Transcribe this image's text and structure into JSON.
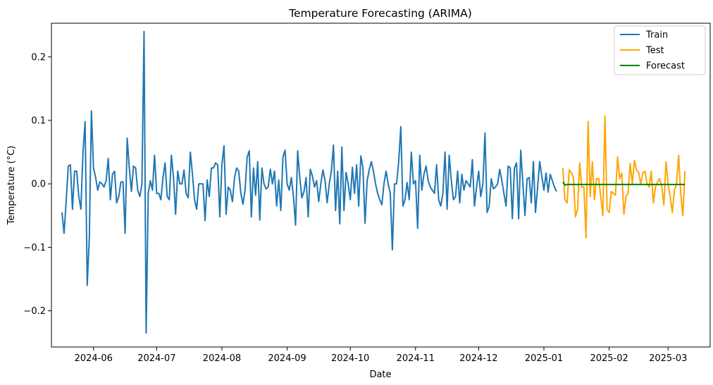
{
  "chart_data": {
    "type": "line",
    "title": "Temperature Forecasting (ARIMA)",
    "xlabel": "Date",
    "ylabel": "Temperature (°C)",
    "xlim": [
      "2024-05-12",
      "2025-03-21"
    ],
    "ylim": [
      -0.257,
      0.253
    ],
    "x_ticks": [
      "2024-06",
      "2024-07",
      "2024-08",
      "2024-09",
      "2024-10",
      "2024-11",
      "2024-12",
      "2025-01",
      "2025-02",
      "2025-03"
    ],
    "x_tick_dates": [
      "2024-06-01",
      "2024-07-01",
      "2024-08-01",
      "2024-09-01",
      "2024-10-01",
      "2024-11-01",
      "2024-12-01",
      "2025-01-01",
      "2025-02-01",
      "2025-03-01"
    ],
    "y_ticks": [
      -0.2,
      -0.1,
      0.0,
      0.1,
      0.2
    ],
    "y_tick_labels": [
      "−0.2",
      "−0.1",
      "0.0",
      "0.1",
      "0.2"
    ],
    "grid": false,
    "legend_position": "top-right",
    "series": [
      {
        "name": "Train",
        "color": "#1f77b4",
        "start_date": "2024-05-17",
        "step_days": 1,
        "values": [
          -0.045,
          -0.078,
          -0.028,
          0.028,
          0.03,
          -0.04,
          0.02,
          0.02,
          -0.02,
          -0.04,
          0.05,
          0.098,
          -0.16,
          -0.085,
          0.115,
          0.025,
          0.01,
          -0.01,
          0.003,
          0.0,
          -0.005,
          0.005,
          0.04,
          -0.025,
          0.015,
          0.02,
          -0.03,
          -0.02,
          0.003,
          0.003,
          -0.078,
          0.072,
          0.025,
          -0.012,
          0.028,
          0.025,
          -0.01,
          -0.02,
          0.0,
          0.24,
          -0.235,
          -0.015,
          0.005,
          -0.01,
          0.045,
          -0.015,
          -0.015,
          -0.025,
          0.01,
          0.033,
          -0.02,
          -0.025,
          0.045,
          0.01,
          -0.048,
          0.02,
          0.0,
          0.0,
          0.022,
          -0.015,
          -0.022,
          0.05,
          0.015,
          -0.025,
          -0.04,
          0.0,
          0.0,
          0.0,
          -0.058,
          0.006,
          -0.02,
          0.025,
          0.025,
          0.033,
          0.03,
          -0.052,
          0.03,
          0.06,
          -0.048,
          -0.005,
          -0.01,
          -0.028,
          0.01,
          0.025,
          0.02,
          -0.015,
          -0.032,
          -0.01,
          0.042,
          0.052,
          -0.052,
          0.025,
          -0.018,
          0.035,
          -0.057,
          0.025,
          0.0,
          -0.008,
          -0.005,
          0.023,
          0.0,
          0.02,
          -0.035,
          0.006,
          -0.042,
          0.042,
          0.053,
          0.0,
          -0.01,
          0.01,
          -0.02,
          -0.065,
          0.052,
          0.01,
          -0.022,
          -0.012,
          0.01,
          -0.052,
          0.023,
          0.012,
          -0.005,
          0.005,
          -0.028,
          0.0,
          0.022,
          0.005,
          -0.03,
          0.0,
          0.02,
          0.061,
          -0.042,
          0.02,
          -0.063,
          0.058,
          -0.042,
          0.018,
          0.0,
          -0.025,
          0.026,
          -0.015,
          0.03,
          -0.035,
          0.044,
          0.025,
          -0.062,
          0.005,
          0.022,
          0.035,
          0.02,
          0.0,
          -0.015,
          -0.025,
          -0.033,
          0.0,
          0.02,
          0.0,
          -0.015,
          -0.104,
          0.0,
          0.0,
          0.035,
          0.09,
          -0.035,
          -0.025,
          0.002,
          -0.025,
          0.05,
          0.0,
          0.005,
          -0.07,
          0.045,
          -0.01,
          0.015,
          0.028,
          0.005,
          -0.005,
          -0.01,
          -0.015,
          0.03,
          -0.025,
          -0.035,
          -0.015,
          0.05,
          -0.04,
          0.045,
          0.005,
          -0.025,
          -0.02,
          0.02,
          -0.03,
          0.015,
          -0.01,
          0.005,
          0.0,
          -0.005,
          0.038,
          -0.035,
          -0.005,
          0.02,
          -0.02,
          0.0,
          0.08,
          -0.045,
          -0.035,
          0.008,
          -0.008,
          -0.005,
          0.0,
          0.023,
          0.005,
          -0.015,
          -0.035,
          0.028,
          0.025,
          -0.055,
          0.025,
          0.033,
          -0.055,
          0.053,
          0.0,
          -0.05,
          0.008,
          0.01,
          -0.03,
          0.035,
          -0.045,
          -0.005,
          0.035,
          0.012,
          -0.01,
          0.017,
          -0.013,
          0.015,
          0.005,
          -0.005,
          -0.012
        ]
      },
      {
        "name": "Test",
        "color": "#ffa500",
        "start_date": "2025-01-10",
        "step_days": 1,
        "values": [
          0.025,
          -0.025,
          -0.03,
          0.022,
          0.018,
          0.01,
          -0.052,
          -0.04,
          0.033,
          -0.005,
          -0.005,
          -0.085,
          0.098,
          -0.02,
          0.035,
          -0.025,
          0.008,
          0.008,
          -0.02,
          -0.05,
          0.107,
          -0.04,
          -0.045,
          -0.012,
          -0.015,
          -0.018,
          0.042,
          0.008,
          0.017,
          -0.048,
          -0.02,
          -0.015,
          0.032,
          0.0,
          0.037,
          0.022,
          0.018,
          0.0,
          0.017,
          0.02,
          0.0,
          -0.005,
          0.02,
          -0.03,
          -0.005,
          0.003,
          0.008,
          -0.005,
          -0.033,
          0.035,
          0.0,
          -0.02,
          -0.045,
          -0.01,
          0.0,
          0.045,
          -0.015,
          -0.05,
          0.02
        ]
      },
      {
        "name": "Forecast",
        "color": "#008000",
        "start_date": "2025-01-10",
        "step_days": 1,
        "values": [
          0.003,
          -0.002,
          -0.001,
          -0.001,
          -0.001,
          -0.001,
          -0.001,
          -0.001,
          -0.001,
          -0.001,
          -0.001,
          -0.001,
          -0.001,
          -0.001,
          -0.001,
          -0.001,
          -0.001,
          -0.001,
          -0.001,
          -0.001,
          -0.001,
          -0.001,
          -0.001,
          -0.001,
          -0.001,
          -0.001,
          -0.001,
          -0.001,
          -0.001,
          -0.001,
          -0.001,
          -0.001,
          -0.001,
          -0.001,
          -0.001,
          -0.001,
          -0.001,
          -0.001,
          -0.001,
          -0.001,
          -0.001,
          -0.001,
          -0.001,
          -0.001,
          -0.001,
          -0.001,
          -0.001,
          -0.001,
          -0.001,
          -0.001,
          -0.001,
          -0.001,
          -0.001,
          -0.001,
          -0.001,
          -0.001,
          -0.001,
          -0.001,
          -0.001
        ]
      }
    ]
  }
}
